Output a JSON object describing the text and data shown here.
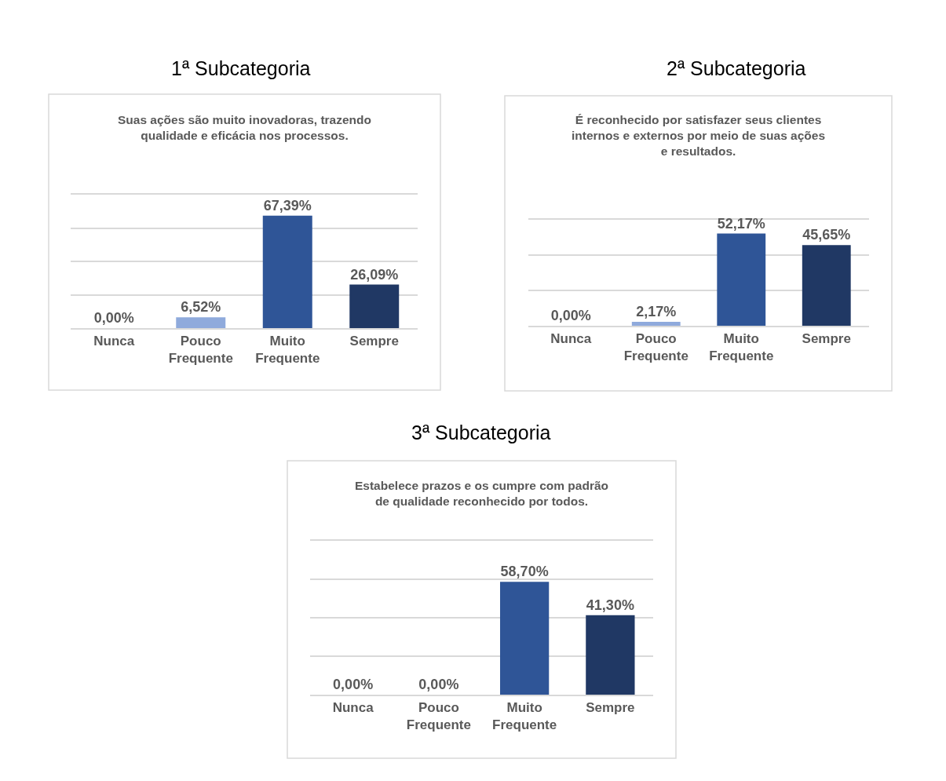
{
  "chart_data": [
    {
      "type": "bar",
      "title": "1ª Subcategoria",
      "subtitle": "Suas ações são muito inovadoras, trazendo qualidade e eficácia nos processos.",
      "categories": [
        "Nunca",
        "Pouco Frequente",
        "Muito Frequente",
        "Sempre"
      ],
      "values": [
        0,
        6.52,
        67.39,
        26.09
      ],
      "value_labels": [
        "0,00%",
        "6,52%",
        "67,39%",
        "26,09%"
      ],
      "colors": [
        "#b4c7e7",
        "#8faadc",
        "#2f5597",
        "#203864"
      ],
      "ylim": [
        0,
        80
      ],
      "yticks": [
        {
          "value": 0,
          "label": null
        },
        {
          "value": 20,
          "label": null
        },
        {
          "value": 40,
          "label": null
        },
        {
          "value": 60,
          "label": null
        },
        {
          "value": 80,
          "label": null
        }
      ],
      "tick_labels": "x",
      "grid": "y"
    },
    {
      "type": "bar",
      "title": "2ª Subcategoria",
      "subtitle": "É reconhecido por satisfazer seus clientes internos e externos por meio de suas ações e resultados.",
      "categories": [
        "Nunca",
        "Pouco Frequente",
        "Muito Frequente",
        "Sempre"
      ],
      "values": [
        0,
        2.17,
        52.17,
        45.65
      ],
      "value_labels": [
        "0,00%",
        "2,17%",
        "52,17%",
        "45,65%"
      ],
      "colors": [
        "#b4c7e7",
        "#8faadc",
        "#2f5597",
        "#203864"
      ],
      "ylim": [
        0,
        60
      ],
      "yticks": [
        {
          "value": 0,
          "label": null
        },
        {
          "value": 20,
          "label": null
        },
        {
          "value": 40,
          "label": null
        },
        {
          "value": 60,
          "label": null
        }
      ],
      "tick_labels": "x",
      "grid": "y"
    },
    {
      "type": "bar",
      "title": "3ª Subcategoria",
      "subtitle": "Estabelece prazos e os cumpre com padrão de qualidade reconhecido por todos.",
      "categories": [
        "Nunca",
        "Pouco Frequente",
        "Muito Frequente",
        "Sempre"
      ],
      "values": [
        0,
        0,
        58.7,
        41.3
      ],
      "value_labels": [
        "0,00%",
        "0,00%",
        "58,70%",
        "41,30%"
      ],
      "colors": [
        "#b4c7e7",
        "#8faadc",
        "#2f5597",
        "#203864"
      ],
      "ylim": [
        0,
        80
      ],
      "yticks": [
        {
          "value": 0,
          "label": null
        },
        {
          "value": 20,
          "label": null
        },
        {
          "value": 40,
          "label": null
        },
        {
          "value": 60,
          "label": null
        },
        {
          "value": 80,
          "label": null
        }
      ],
      "tick_labels": "x",
      "grid": "y"
    }
  ]
}
